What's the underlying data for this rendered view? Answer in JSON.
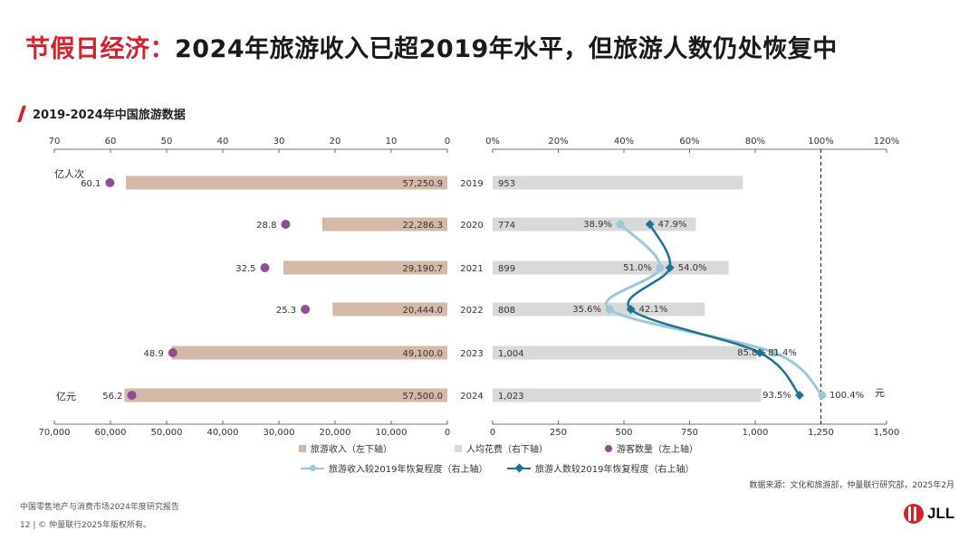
{
  "headline": {
    "red": "节假日经济：",
    "black": "2024年旅游收入已超2019年水平，但旅游人数仍处恢复中"
  },
  "subhead": "2019-2024年中国旅游数据",
  "chart_data": {
    "type": "bar",
    "years": [
      "2019",
      "2020",
      "2021",
      "2022",
      "2023",
      "2024"
    ],
    "tourism_revenue": [
      57250.9,
      22286.3,
      29190.7,
      20444.0,
      49100.0,
      57500.0
    ],
    "tourism_revenue_labels": [
      "57,250.9",
      "22,286.3",
      "29,190.7",
      "20,444.0",
      "49,100.0",
      "57,500.0"
    ],
    "tourist_count": [
      60.1,
      28.8,
      32.5,
      25.3,
      48.9,
      56.2
    ],
    "per_capita_spend": [
      953,
      774,
      899,
      808,
      1004,
      1023
    ],
    "per_capita_spend_labels": [
      "953",
      "774",
      "899",
      "808",
      "1,004",
      "1,023"
    ],
    "revenue_recovery_pct": [
      38.9,
      51.0,
      35.6,
      85.8,
      100.4
    ],
    "count_recovery_pct": [
      47.9,
      54.0,
      42.1,
      81.4,
      93.5
    ],
    "recovery_years": [
      "2020",
      "2021",
      "2022",
      "2023",
      "2024"
    ],
    "revenue_recovery_labels": [
      "38.9%",
      "51.0%",
      "35.6%",
      "85.8%",
      "100.4%"
    ],
    "count_recovery_labels": [
      "47.9%",
      "54.0%",
      "42.1%",
      "81.4%",
      "93.5%"
    ],
    "left_top_axis": {
      "ticks": [
        "70",
        "60",
        "50",
        "40",
        "30",
        "20",
        "10",
        "0"
      ],
      "range": [
        0,
        70
      ],
      "unit": "亿人次"
    },
    "left_bottom_axis": {
      "ticks": [
        "70,000",
        "60,000",
        "50,000",
        "40,000",
        "30,000",
        "20,000",
        "10,000",
        "0"
      ],
      "range": [
        0,
        70000
      ],
      "unit": "亿元"
    },
    "right_top_axis": {
      "ticks": [
        "0%",
        "20%",
        "40%",
        "60%",
        "80%",
        "100%",
        "120%"
      ],
      "range": [
        0,
        120
      ]
    },
    "right_bottom_axis": {
      "ticks": [
        "0",
        "250",
        "500",
        "750",
        "1,000",
        "1,250",
        "1,500"
      ],
      "range": [
        0,
        1500
      ],
      "unit": "元"
    },
    "reference_line": "100%",
    "legend": {
      "revenue": "旅游收入（左下轴）",
      "spend": "人均花费（右下轴）",
      "count": "游客数量（左上轴）",
      "rev_recovery": "旅游收入较2019年恢复程度（右上轴）",
      "cnt_recovery": "旅游人数较2019年恢复程度（右上轴）"
    },
    "colors": {
      "revenue_bar": "#d4b8a8",
      "spend_bar": "#d9d9d9",
      "count_dot": "#8e4f92",
      "rev_recovery_line": "#9cc9d8",
      "cnt_recovery_line": "#1e7394",
      "reference": "#333333"
    }
  },
  "source": "数据来源：文化和旅游部，仲量联行研究部，2025年2月",
  "footer": {
    "report": "中国零售地产与消费市场2024年度研究报告",
    "copyright": "12 | © 仲量联行2025年版权所有。"
  },
  "logo": "JLL"
}
